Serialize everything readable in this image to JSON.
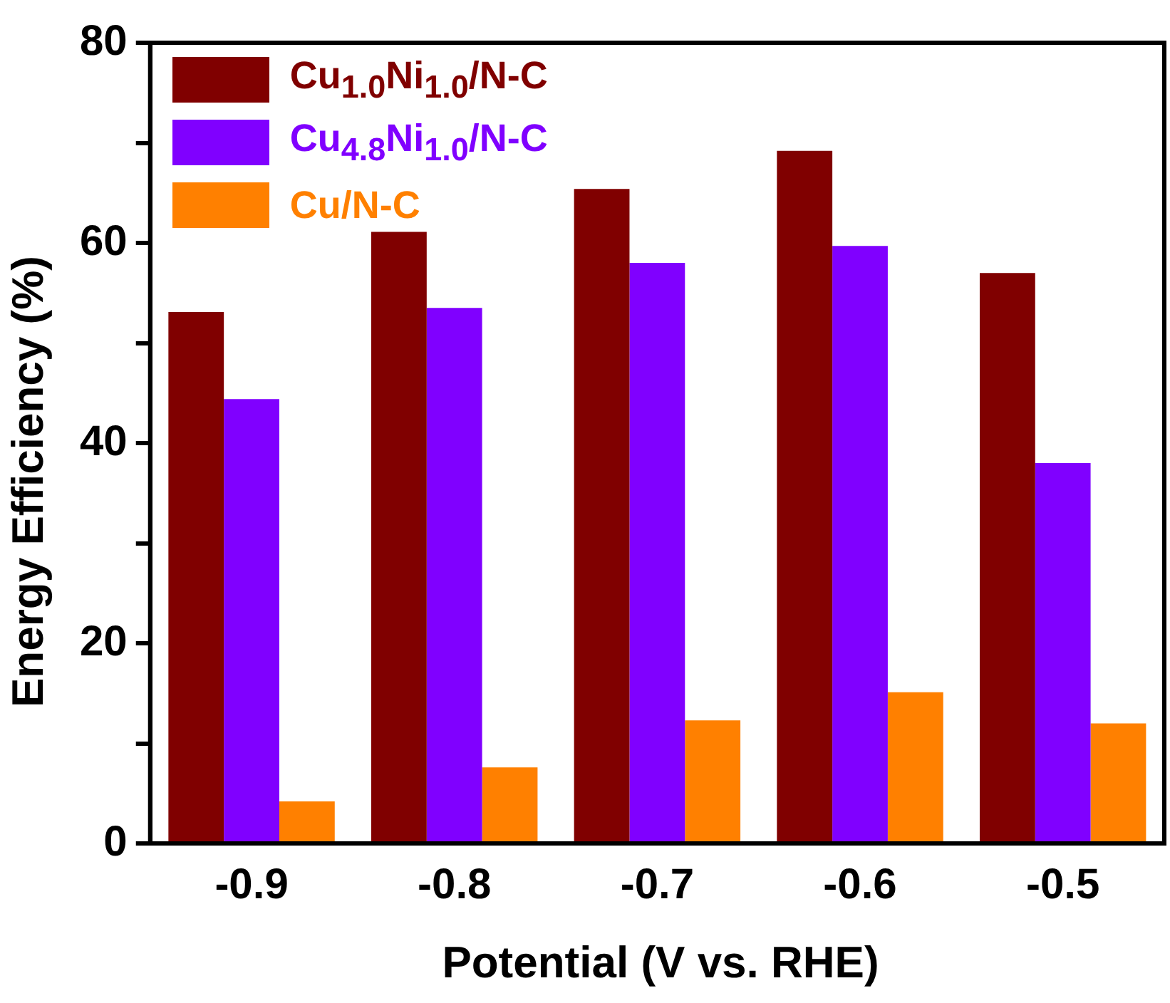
{
  "chart_data": {
    "type": "bar",
    "xlabel": "Potential (V vs. RHE)",
    "ylabel": "Energy Efficiency (%)",
    "categories": [
      "-0.9",
      "-0.8",
      "-0.7",
      "-0.6",
      "-0.5"
    ],
    "series": [
      {
        "name": "Cu$_{1.0}$Ni$_{1.0}$/N-C",
        "color": "#800000",
        "values": [
          53.1,
          61.1,
          65.4,
          69.2,
          57.0
        ]
      },
      {
        "name": "Cu$_{4.8}$Ni$_{1.0}$/N-C",
        "color": "#8000ff",
        "values": [
          44.4,
          53.5,
          58.0,
          59.7,
          38.0
        ]
      },
      {
        "name": "Cu/N-C",
        "color": "#ff8000",
        "values": [
          4.2,
          7.6,
          12.3,
          15.1,
          12.0
        ]
      }
    ],
    "ylim": [
      0,
      80
    ],
    "yticks": [
      0,
      {
        "value": 10,
        "label": null
      },
      20,
      {
        "value": 30,
        "label": null
      },
      40,
      {
        "value": 50,
        "label": null
      },
      60,
      {
        "value": 70,
        "label": null
      },
      80
    ],
    "grid": false,
    "legend": "top left"
  }
}
